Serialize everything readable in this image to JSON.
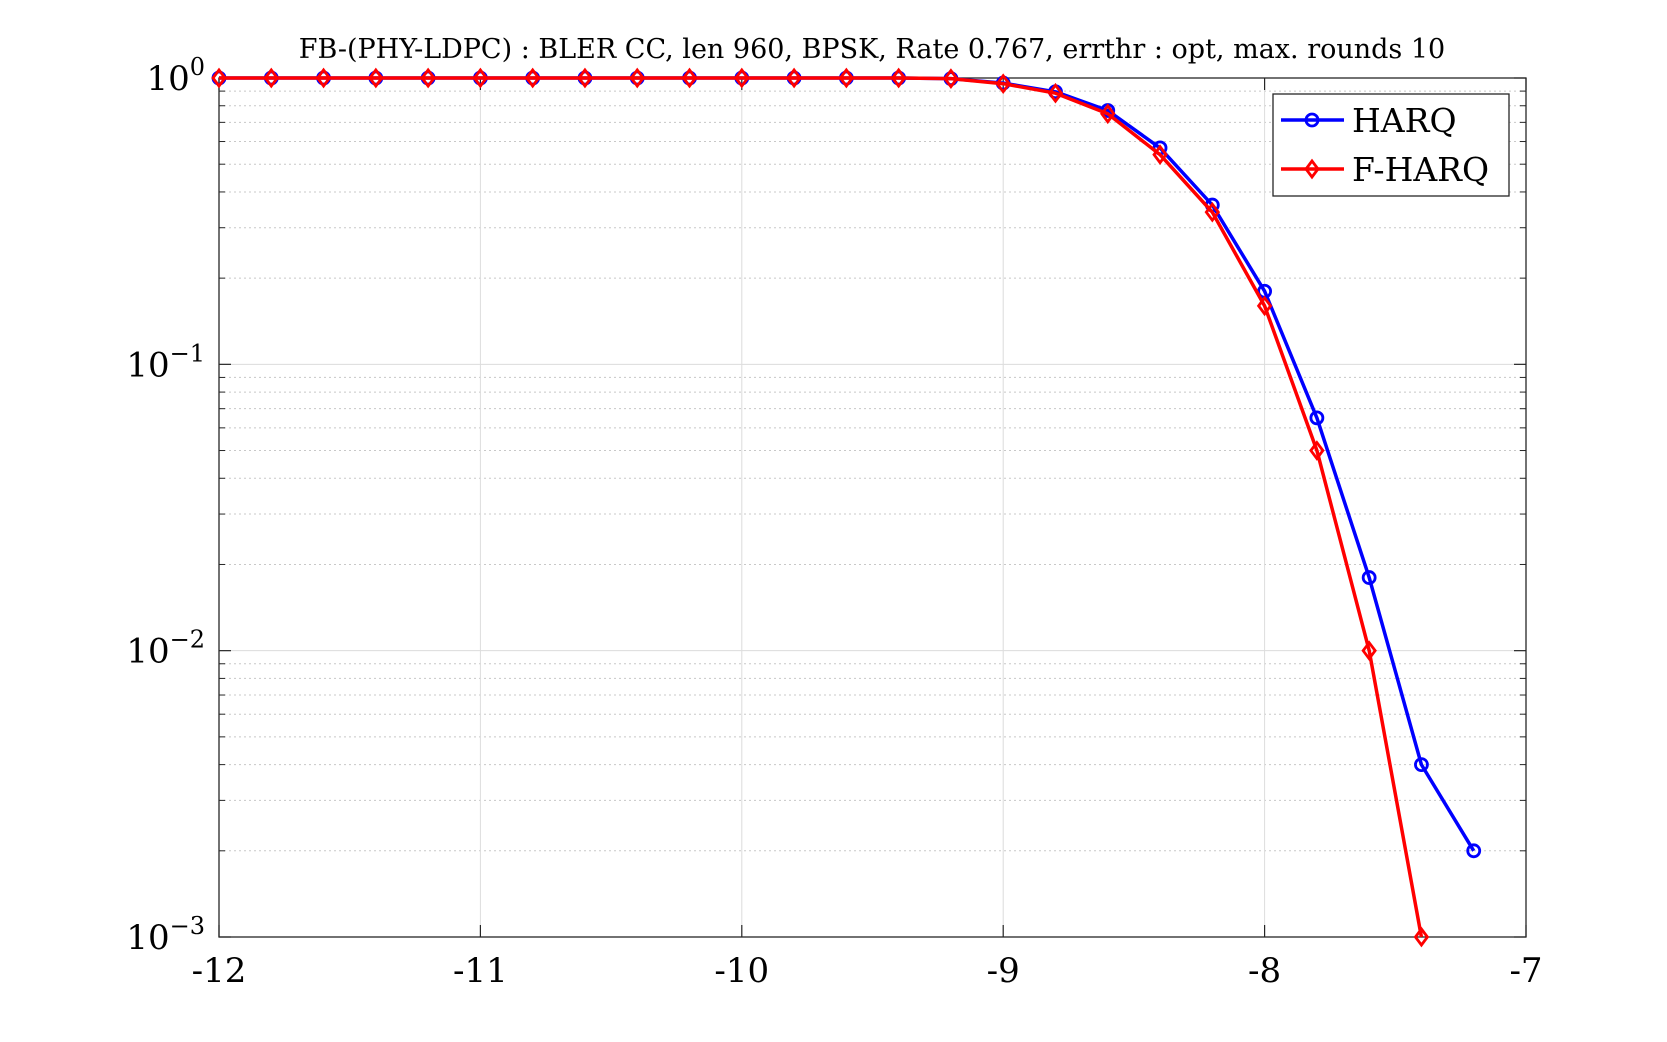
{
  "chart_data": {
    "type": "line",
    "title": "FB-(PHY-LDPC) : BLER CC, len 960, BPSK, Rate 0.767, errthr : opt, max. rounds 10",
    "xlabel": "",
    "ylabel": "",
    "xlim": [
      -12,
      -7
    ],
    "ylim": [
      0.001,
      1
    ],
    "yscale": "log",
    "grid": true,
    "legend_position": "top-right",
    "x_ticks": [
      -12,
      -11,
      -10,
      -9,
      -8,
      -7
    ],
    "x_tick_labels": [
      "-12",
      "-11",
      "-10",
      "-9",
      "-8",
      "-7"
    ],
    "y_ticks": [
      {
        "value": 1,
        "base": "10",
        "exp": "0"
      },
      {
        "value": 0.1,
        "base": "10",
        "exp": "−1"
      },
      {
        "value": 0.01,
        "base": "10",
        "exp": "−2"
      },
      {
        "value": 0.001,
        "base": "10",
        "exp": "−3"
      }
    ],
    "series": [
      {
        "name": "HARQ",
        "color": "#0000ff",
        "marker": "circle",
        "x": [
          -12,
          -11.8,
          -11.6,
          -11.4,
          -11.2,
          -11,
          -10.8,
          -10.6,
          -10.4,
          -10.2,
          -10,
          -9.8,
          -9.6,
          -9.4,
          -9.2,
          -9,
          -8.8,
          -8.6,
          -8.4,
          -8.2,
          -8,
          -7.8,
          -7.6,
          -7.4,
          -7.2
        ],
        "values": [
          1,
          1,
          1,
          1,
          1,
          1,
          1,
          1,
          1,
          1,
          1,
          1,
          1,
          1,
          0.995,
          0.96,
          0.895,
          0.77,
          0.57,
          0.36,
          0.18,
          0.065,
          0.018,
          0.004,
          0.002
        ]
      },
      {
        "name": "F-HARQ",
        "color": "#ff0000",
        "marker": "diamond",
        "x": [
          -12,
          -11.8,
          -11.6,
          -11.4,
          -11.2,
          -11,
          -10.8,
          -10.6,
          -10.4,
          -10.2,
          -10,
          -9.8,
          -9.6,
          -9.4,
          -9.2,
          -9,
          -8.8,
          -8.6,
          -8.4,
          -8.2,
          -8,
          -7.8,
          -7.6,
          -7.4
        ],
        "values": [
          1,
          1,
          1,
          1,
          1,
          1,
          1,
          1,
          1,
          1,
          1,
          1,
          1,
          1,
          0.995,
          0.955,
          0.885,
          0.75,
          0.54,
          0.34,
          0.16,
          0.05,
          0.01,
          0.001
        ]
      }
    ]
  }
}
